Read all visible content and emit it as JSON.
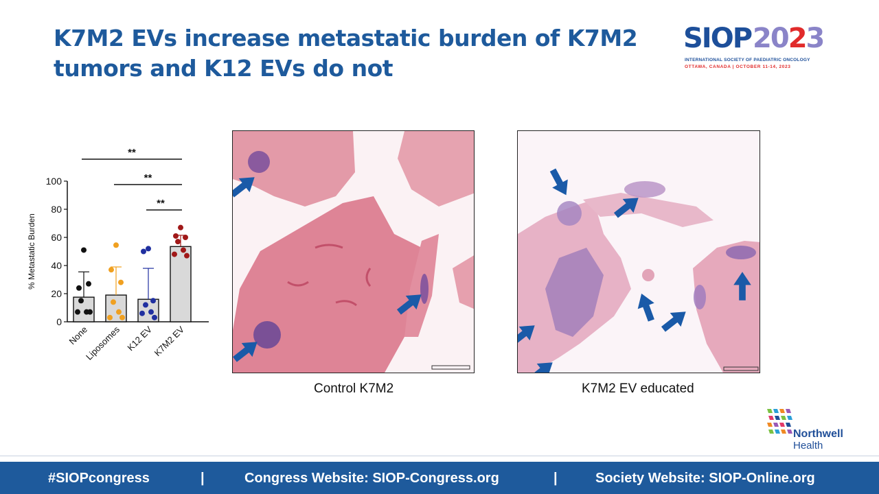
{
  "title": {
    "line1": "K7M2 EVs increase metastatic burden of K7M2",
    "line2": "tumors and K12 EVs do not"
  },
  "logo": {
    "siop_word": "SIOP",
    "year_prefix": "20",
    "year_highlight": "2",
    "year_suffix": "3",
    "subtitle": "INTERNATIONAL SOCIETY OF PAEDIATRIC ONCOLOGY",
    "location": "OTTAWA, CANADA | OCTOBER 11-14, 2023"
  },
  "chart_data": {
    "type": "bar",
    "ylabel": "% Metastatic Burden",
    "xlabel": "",
    "ylim": [
      0,
      100
    ],
    "yticks": [
      0,
      20,
      40,
      60,
      80,
      100
    ],
    "categories": [
      "None",
      "Liposomes",
      "K12 EV",
      "K7M2 EV"
    ],
    "values": [
      17.5,
      19,
      16,
      53.5
    ],
    "errors": [
      18,
      20,
      22,
      8
    ],
    "colors": [
      "#111111",
      "#f0a020",
      "#2030a0",
      "#a01818"
    ],
    "points": [
      [
        51,
        24,
        27,
        15,
        7,
        7,
        7
      ],
      [
        54.5,
        37,
        28,
        14,
        7,
        3,
        3
      ],
      [
        52,
        50,
        15,
        12,
        7,
        6,
        3
      ],
      [
        67,
        61,
        60,
        57,
        51,
        48,
        47
      ]
    ],
    "significance": [
      {
        "from": 0,
        "to": 3,
        "label": "**"
      },
      {
        "from": 1,
        "to": 3,
        "label": "**"
      },
      {
        "from": 2,
        "to": 3,
        "label": "**"
      }
    ],
    "grid": false,
    "legend": "none"
  },
  "images": [
    {
      "caption": "Control K7M2"
    },
    {
      "caption": "K7M2 EV educated"
    }
  ],
  "northwell": {
    "name": "Northwell",
    "sub": "Health"
  },
  "footer": {
    "hashtag": "#SIOPcongress",
    "sep": "|",
    "congress": "Congress Website: SIOP-Congress.org",
    "society": "Society Website: SIOP-Online.org"
  },
  "colors": {
    "title": "#1e5a9c",
    "footer_bg": "#1e5a9c",
    "arrow": "#1a5aa8",
    "tissue_pink": "#e07a8c",
    "tumor_purple": "#7a4f9c"
  }
}
